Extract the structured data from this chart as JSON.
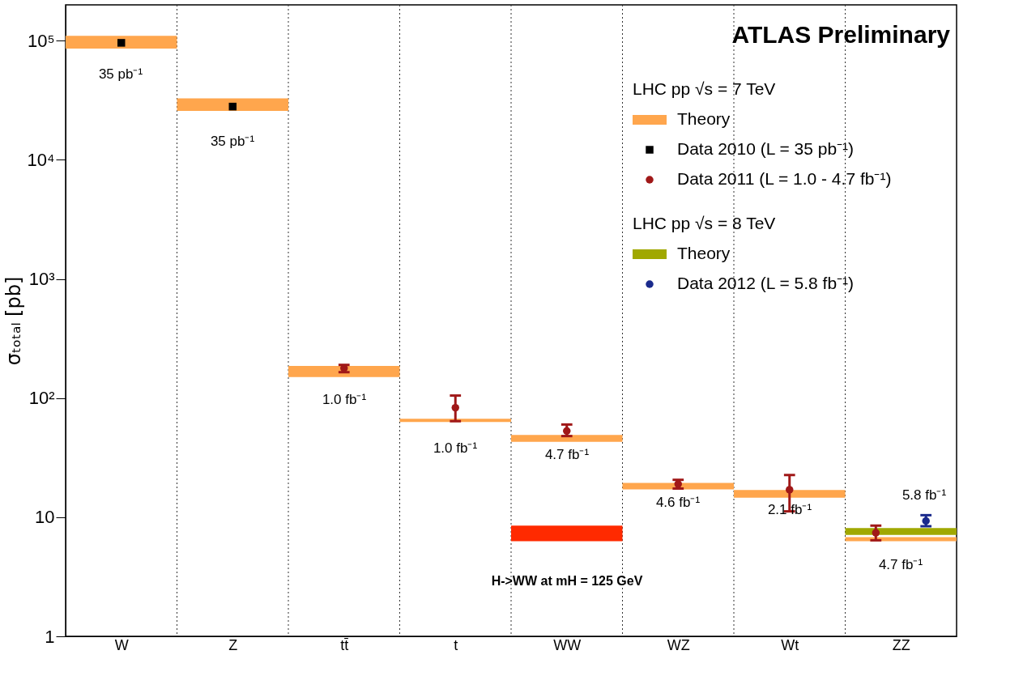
{
  "chart_data": {
    "type": "bar",
    "ylabel": "σₜₒₜₐₗ [pb]",
    "categories": [
      "W",
      "Z",
      "tt̄",
      "t",
      "WW",
      "WZ",
      "Wt",
      "ZZ"
    ],
    "ylim": [
      1,
      200000
    ],
    "yticks": [
      1,
      10,
      {
        "value": 100,
        "label": "10²"
      },
      {
        "value": 1000,
        "label": "10³"
      },
      {
        "value": 10000,
        "label": "10⁴"
      },
      {
        "value": 100000,
        "label": "10⁵"
      }
    ],
    "log": "y",
    "grid": "x",
    "legend": "top right",
    "series": [
      {
        "name": "Theory",
        "color": "#ffa64d",
        "base": [
          86000,
          25700,
          150,
          63,
          43,
          17.1,
          14.6,
          6.3
        ],
        "values": [
          24000,
          7100,
          36,
          4,
          6,
          2.3,
          2.3,
          0.5
        ]
      },
      {
        "name": "Data 2010 (L = 35 pb⁻¹)",
        "type": "scatter",
        "marker": "square",
        "color": "#000000",
        "values": [
          96000,
          28000,
          null,
          null,
          null,
          null,
          null,
          null
        ]
      },
      {
        "name": "Data 2011 (L = 1.0 - 4.7 fb⁻¹)",
        "type": "scatter",
        "marker": "circle",
        "color": "#a01818",
        "values": [
          null,
          null,
          178,
          83,
          53,
          19,
          17,
          7.4
        ],
        "errors": [
          null,
          null,
          [
            165,
            190
          ],
          [
            64,
            105
          ],
          [
            48,
            60
          ],
          [
            17.4,
            20.6
          ],
          [
            11.2,
            22.6
          ],
          [
            6.4,
            8.5
          ]
        ]
      },
      {
        "name": "Theory",
        "color": "#a0a800",
        "base": [
          null,
          null,
          null,
          null,
          null,
          null,
          null,
          7.1
        ],
        "values": [
          null,
          null,
          null,
          null,
          null,
          null,
          null,
          1.0
        ]
      },
      {
        "name": "Data 2012 (L = 5.8 fb⁻¹)",
        "type": "scatter",
        "marker": "circle",
        "color": "#1a2a8c",
        "values": [
          null,
          null,
          null,
          null,
          null,
          null,
          null,
          9.3
        ],
        "errors": [
          null,
          null,
          null,
          null,
          null,
          null,
          null,
          [
            8.4,
            10.4
          ]
        ]
      },
      {
        "color": "#ff2a00",
        "base": [
          null,
          null,
          null,
          null,
          6.3,
          null,
          null,
          null
        ],
        "values": [
          null,
          null,
          null,
          null,
          2.2,
          null,
          null,
          null
        ]
      }
    ],
    "annotations": [
      "ATLAS Preliminary",
      "LHC pp √s = 7 TeV",
      "LHC pp √s = 8 TeV",
      "35 pb⁻¹",
      "35 pb⁻¹",
      "1.0 fb⁻¹",
      "1.0 fb⁻¹",
      "4.7 fb⁻¹",
      "4.6 fb⁻¹",
      "2.1 fb⁻¹",
      "4.7 fb⁻¹",
      "5.8 fb⁻¹",
      "H->WW at mH = 125 GeV"
    ]
  }
}
